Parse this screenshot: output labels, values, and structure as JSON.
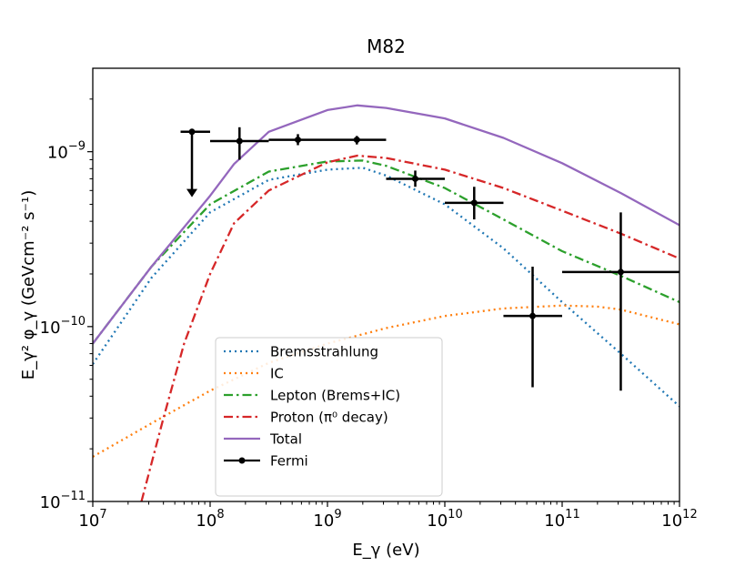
{
  "chart_data": {
    "type": "line",
    "title": "M82",
    "xlabel": "E_γ (eV)",
    "ylabel": "E_γ² φ_γ (GeVcm⁻² s⁻¹)",
    "xscale": "log",
    "yscale": "log",
    "xlim": [
      10000000.0,
      1000000000000.0
    ],
    "ylim": [
      1e-11,
      3e-09
    ],
    "x_ticks": [
      {
        "base": "10",
        "exp": "7"
      },
      {
        "base": "10",
        "exp": "8"
      },
      {
        "base": "10",
        "exp": "9"
      },
      {
        "base": "10",
        "exp": "10"
      },
      {
        "base": "10",
        "exp": "11"
      },
      {
        "base": "10",
        "exp": "12"
      }
    ],
    "y_ticks": [
      {
        "base": "10",
        "exp": "−11"
      },
      {
        "base": "10",
        "exp": "−10"
      },
      {
        "base": "10",
        "exp": "−9"
      }
    ],
    "legend_position": "lower-center",
    "series": [
      {
        "name": "Bremsstrahlung",
        "color": "#1f77b4",
        "style": "dotted",
        "x": [
          10000000.0,
          31600000.0,
          100000000.0,
          316000000.0,
          1000000000.0,
          2000000000.0,
          3160000000.0,
          10000000000.0,
          31600000000.0,
          100000000000.0,
          316000000000.0,
          1000000000000.0
        ],
        "y": [
          6.1e-11,
          1.9e-10,
          4.5e-10,
          6.9e-10,
          7.9e-10,
          8.1e-10,
          7.3e-10,
          5e-10,
          2.8e-10,
          1.38e-10,
          7e-11,
          3.5e-11
        ]
      },
      {
        "name": "IC",
        "color": "#ff7f0e",
        "style": "dotted",
        "x": [
          10000000.0,
          31600000.0,
          100000000.0,
          316000000.0,
          1000000000.0,
          3160000000.0,
          10000000000.0,
          31600000000.0,
          100000000000.0,
          200000000000.0,
          316000000000.0,
          1000000000000.0
        ],
        "y": [
          1.8e-11,
          2.8e-11,
          4.3e-11,
          6.2e-11,
          8e-11,
          9.8e-11,
          1.15e-10,
          1.27e-10,
          1.32e-10,
          1.3e-10,
          1.25e-10,
          1.03e-10
        ]
      },
      {
        "name": "Lepton (Brems+IC)",
        "color": "#2ca02c",
        "style": "dashdot",
        "x": [
          10000000.0,
          31600000.0,
          100000000.0,
          316000000.0,
          1000000000.0,
          2000000000.0,
          3160000000.0,
          10000000000.0,
          31600000000.0,
          100000000000.0,
          316000000000.0,
          1000000000000.0
        ],
        "y": [
          8e-11,
          2.2e-10,
          5e-10,
          7.7e-10,
          8.8e-10,
          8.9e-10,
          8.3e-10,
          6.2e-10,
          4.1e-10,
          2.7e-10,
          1.95e-10,
          1.38e-10
        ]
      },
      {
        "name": "Proton (π⁰ decay)",
        "color": "#d62728",
        "style": "dashdot",
        "x": [
          26000000.0,
          40000000.0,
          60000000.0,
          100000000.0,
          160000000.0,
          316000000.0,
          1000000000.0,
          1800000000.0,
          3160000000.0,
          10000000000.0,
          31600000000.0,
          100000000000.0,
          316000000000.0,
          1000000000000.0
        ],
        "y": [
          1e-11,
          3e-11,
          8e-11,
          2e-10,
          3.9e-10,
          6e-10,
          8.7e-10,
          9.5e-10,
          9.2e-10,
          7.9e-10,
          6.2e-10,
          4.6e-10,
          3.4e-10,
          2.45e-10
        ]
      },
      {
        "name": "Total",
        "color": "#9467bd",
        "style": "solid",
        "x": [
          10000000.0,
          31600000.0,
          100000000.0,
          160000000.0,
          316000000.0,
          1000000000.0,
          1800000000.0,
          3160000000.0,
          10000000000.0,
          31600000000.0,
          100000000000.0,
          316000000000.0,
          1000000000000.0
        ],
        "y": [
          8e-11,
          2.2e-10,
          5.6e-10,
          8.5e-10,
          1.3e-09,
          1.73e-09,
          1.84e-09,
          1.78e-09,
          1.55e-09,
          1.2e-09,
          8.6e-10,
          5.8e-10,
          3.8e-10
        ]
      }
    ],
    "fermi": {
      "name": "Fermi",
      "color": "#000000",
      "points": [
        {
          "x": 178000000.0,
          "y": 1.15e-09,
          "xlo": 100000000.0,
          "xhi": 316000000.0,
          "ylo": 9e-10,
          "yhi": 1.38e-09
        },
        {
          "x": 560000000.0,
          "y": 1.17e-09,
          "xlo": 316000000.0,
          "xhi": 1000000000.0,
          "ylo": 1.09e-09,
          "yhi": 1.26e-09
        },
        {
          "x": 1780000000.0,
          "y": 1.17e-09,
          "xlo": 1000000000.0,
          "xhi": 3160000000.0,
          "ylo": 1.1e-09,
          "yhi": 1.23e-09
        },
        {
          "x": 5600000000.0,
          "y": 7e-10,
          "xlo": 3160000000.0,
          "xhi": 10000000000.0,
          "ylo": 6.3e-10,
          "yhi": 7.8e-10
        },
        {
          "x": 17800000000.0,
          "y": 5.1e-10,
          "xlo": 10000000000.0,
          "xhi": 31600000000.0,
          "ylo": 4.1e-10,
          "yhi": 6.3e-10
        },
        {
          "x": 56000000000.0,
          "y": 1.15e-10,
          "xlo": 31600000000.0,
          "xhi": 100000000000.0,
          "ylo": 4.5e-11,
          "yhi": 2.2e-10
        },
        {
          "x": 316000000000.0,
          "y": 2.05e-10,
          "xlo": 100000000000.0,
          "xhi": 1000000000000.0,
          "ylo": 4.3e-11,
          "yhi": 4.5e-10
        }
      ],
      "upper_limits": [
        {
          "x": 70000000.0,
          "y": 1.3e-09,
          "xlo": 56000000.0,
          "xhi": 100000000.0,
          "arrow_to": 5.5e-10
        }
      ]
    }
  }
}
